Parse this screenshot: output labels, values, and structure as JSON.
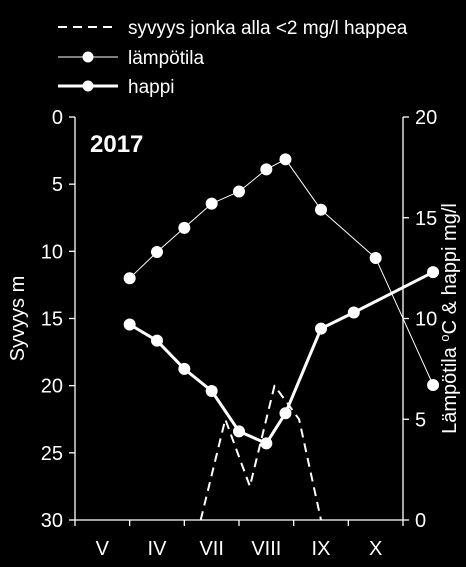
{
  "chart_data": {
    "type": "line",
    "year_label": "2017",
    "categories": [
      "V",
      "IV",
      "VII",
      "VIII",
      "IX",
      "X"
    ],
    "y_left": {
      "label": "Syvyys m",
      "range": [
        0,
        30
      ],
      "inverted": true,
      "ticks": [
        0,
        5,
        10,
        15,
        20,
        25,
        30
      ]
    },
    "y_right": {
      "label_prefix": "Lämpötila ",
      "label_sup": "o",
      "label_suffix": "C & happi mg/l",
      "range": [
        0,
        20
      ],
      "ticks": [
        0,
        5,
        10,
        15,
        20
      ]
    },
    "x_range": [
      0,
      6
    ],
    "legend_position": "top",
    "series": [
      {
        "name": "syvyys jonka alla <2 mg/l happea",
        "axis": "left",
        "style": "dashed",
        "color": "#ffffff",
        "x": [
          2.3,
          2.75,
          3.2,
          3.65,
          4.1,
          4.5
        ],
        "y": [
          30,
          22.5,
          27.5,
          20,
          22.5,
          30
        ]
      },
      {
        "name": "lämpötila",
        "axis": "right",
        "style": "thin-marker",
        "color": "#ffffff",
        "x": [
          1.0,
          1.5,
          2.0,
          2.5,
          3.0,
          3.5,
          3.85,
          4.5,
          5.5,
          6.55
        ],
        "y": [
          12.0,
          13.3,
          14.5,
          15.7,
          16.3,
          17.4,
          17.9,
          15.4,
          13.0,
          6.7
        ]
      },
      {
        "name": "happi",
        "axis": "right",
        "style": "thick-marker",
        "color": "#ffffff",
        "x": [
          1.0,
          1.5,
          2.0,
          2.5,
          3.0,
          3.5,
          3.85,
          4.5,
          5.1,
          6.55
        ],
        "y": [
          9.7,
          8.9,
          7.5,
          6.4,
          4.4,
          3.8,
          5.3,
          9.5,
          10.3,
          12.3
        ]
      }
    ]
  }
}
